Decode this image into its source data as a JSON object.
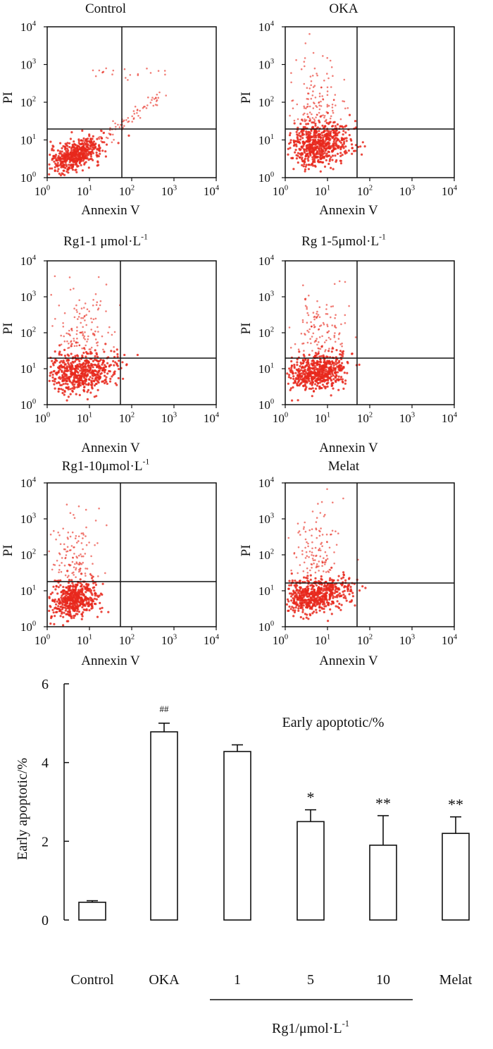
{
  "figure": {
    "flow_axis_ticks": [
      "10",
      "10",
      "10",
      "10",
      "10"
    ],
    "flow_axis_exponents": [
      "0",
      "1",
      "2",
      "3",
      "4"
    ]
  },
  "panels": [
    {
      "title": "Control",
      "title_sup": "",
      "xlabel": "Annexin V",
      "ylabel": "PI"
    },
    {
      "title": "OKA",
      "title_sup": "",
      "xlabel": "Annexin V",
      "ylabel": "PI"
    },
    {
      "title": "Rg1-1 μmol·L",
      "title_sup": "-1",
      "xlabel": "Annexin V",
      "ylabel": "PI"
    },
    {
      "title": "Rg 1-5μmol·L",
      "title_sup": "-1",
      "xlabel": "Annexin V",
      "ylabel": "PI"
    },
    {
      "title": "Rg1-10μmol·L",
      "title_sup": "-1",
      "xlabel": "Annexin V",
      "ylabel": "PI"
    },
    {
      "title": "Melat",
      "title_sup": "",
      "xlabel": "Annexin V",
      "ylabel": "PI"
    }
  ],
  "chart_data": [
    {
      "type": "bar",
      "title": "Early apoptotic/%",
      "ylabel": "Early apoptotic/%",
      "xlabel": "",
      "ylim": [
        0,
        6
      ],
      "yticks": [
        0,
        2,
        4,
        6
      ],
      "categories": [
        "Control",
        "OKA",
        "1",
        "5",
        "10",
        "Melat"
      ],
      "values": [
        0.45,
        4.78,
        4.28,
        2.5,
        1.9,
        2.2
      ],
      "errors": [
        0.04,
        0.22,
        0.17,
        0.3,
        0.75,
        0.42
      ],
      "annotations": [
        "",
        "##",
        "",
        "*",
        "**",
        "**"
      ],
      "group_label": {
        "text": "Rg1/μmol·L",
        "sup": "-1"
      }
    }
  ],
  "colors": {
    "dots": "#e8281c",
    "ink": "#111111",
    "bar_fill": "#ffffff"
  }
}
